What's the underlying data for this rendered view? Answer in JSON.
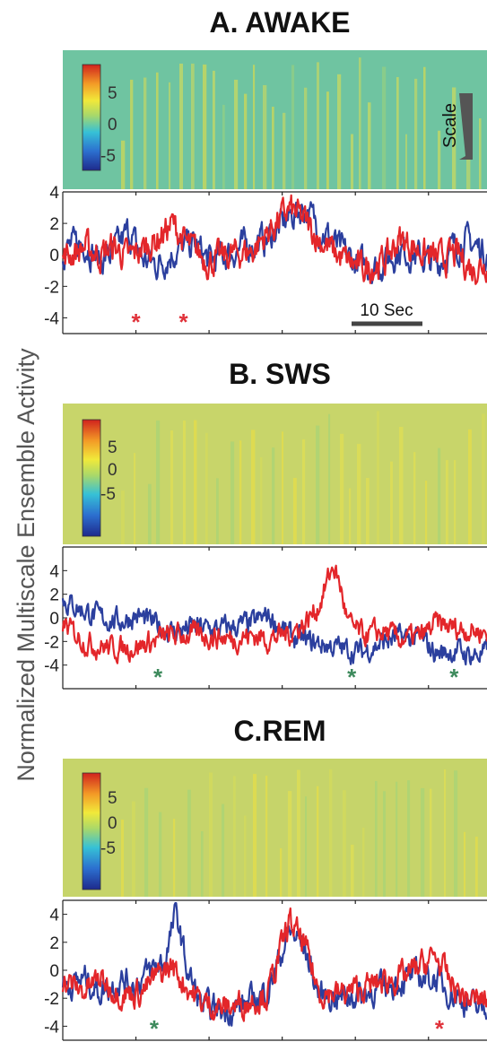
{
  "y_label": "Normalized Multiscale Ensemble Activity",
  "colors": {
    "series_blue": "#2b3f9e",
    "series_red": "#e3262a",
    "star_red": "#e0323a",
    "star_green": "#3d8a5c"
  },
  "chart_data": [
    {
      "type": "line",
      "title": "A. AWAKE",
      "colorbar_ticks": [
        "5",
        "0",
        "-5"
      ],
      "scale_label": "Scale",
      "scale_bar_label": "10 Sec",
      "yticks": [
        "4",
        "2",
        "0",
        "-2",
        "-4"
      ],
      "ylim": [
        -5,
        4
      ],
      "x_duration_sec": 58,
      "series": [
        {
          "color": "blue",
          "anchors": [
            [
              0,
              0.3
            ],
            [
              3,
              0.8
            ],
            [
              5,
              -0.4
            ],
            [
              7,
              0.2
            ],
            [
              9,
              1.5
            ],
            [
              11,
              -0.3
            ],
            [
              13,
              -0.6
            ],
            [
              16,
              0.4
            ],
            [
              18,
              0.7
            ],
            [
              20,
              -0.4
            ],
            [
              23,
              0.1
            ],
            [
              25,
              0.6
            ],
            [
              28,
              1.0
            ],
            [
              31,
              2.4
            ],
            [
              33,
              3.0
            ],
            [
              35,
              1.8
            ],
            [
              38,
              0.3
            ],
            [
              40,
              -0.5
            ],
            [
              43,
              -0.8
            ],
            [
              46,
              0.3
            ],
            [
              48,
              0.0
            ],
            [
              51,
              -0.6
            ],
            [
              53,
              0.3
            ],
            [
              55,
              0.9
            ],
            [
              58,
              0.2
            ]
          ]
        },
        {
          "color": "red",
          "anchors": [
            [
              0,
              -0.2
            ],
            [
              3,
              0.5
            ],
            [
              5,
              0.0
            ],
            [
              7,
              0.5
            ],
            [
              9,
              -0.2
            ],
            [
              11,
              0.4
            ],
            [
              13,
              1.0
            ],
            [
              15,
              2.0
            ],
            [
              17,
              0.6
            ],
            [
              20,
              -0.4
            ],
            [
              23,
              0.0
            ],
            [
              26,
              0.3
            ],
            [
              28,
              1.4
            ],
            [
              31,
              2.9
            ],
            [
              33,
              2.2
            ],
            [
              35,
              1.0
            ],
            [
              38,
              -0.2
            ],
            [
              41,
              -0.9
            ],
            [
              44,
              -0.4
            ],
            [
              46,
              1.0
            ],
            [
              48,
              0.5
            ],
            [
              51,
              -0.3
            ],
            [
              54,
              0.0
            ],
            [
              56,
              -0.9
            ],
            [
              58,
              -0.4
            ]
          ]
        }
      ],
      "markers": [
        {
          "label": "*",
          "color": "red",
          "t": 10
        },
        {
          "label": "*",
          "color": "red",
          "t": 16.5
        }
      ]
    },
    {
      "type": "line",
      "title": "B. SWS",
      "colorbar_ticks": [
        "5",
        "0",
        "-5"
      ],
      "yticks": [
        "4",
        "2",
        "0",
        "-2",
        "-4"
      ],
      "ylim": [
        -6,
        6
      ],
      "x_duration_sec": 58,
      "series": [
        {
          "color": "blue",
          "anchors": [
            [
              0,
              1.5
            ],
            [
              3,
              0.6
            ],
            [
              5,
              0.0
            ],
            [
              8,
              -0.3
            ],
            [
              10,
              0.2
            ],
            [
              12,
              -0.4
            ],
            [
              15,
              -1.2
            ],
            [
              18,
              -0.8
            ],
            [
              21,
              -1.0
            ],
            [
              24,
              -0.7
            ],
            [
              26,
              -0.5
            ],
            [
              28,
              0.2
            ],
            [
              31,
              -1.5
            ],
            [
              33,
              -2.0
            ],
            [
              36,
              -2.3
            ],
            [
              38,
              -2.6
            ],
            [
              41,
              -2.9
            ],
            [
              44,
              -2.0
            ],
            [
              46,
              -1.7
            ],
            [
              49,
              -1.8
            ],
            [
              51,
              -3.0
            ],
            [
              54,
              -2.8
            ],
            [
              56,
              -3.2
            ],
            [
              58,
              -3.0
            ]
          ]
        },
        {
          "color": "red",
          "anchors": [
            [
              0,
              -0.5
            ],
            [
              3,
              -2.0
            ],
            [
              5,
              -2.4
            ],
            [
              8,
              -2.6
            ],
            [
              11,
              -2.3
            ],
            [
              14,
              -1.6
            ],
            [
              17,
              -1.4
            ],
            [
              20,
              -1.5
            ],
            [
              23,
              -1.8
            ],
            [
              26,
              -1.5
            ],
            [
              28,
              -1.8
            ],
            [
              31,
              -1.3
            ],
            [
              33,
              -0.5
            ],
            [
              35,
              1.0
            ],
            [
              37,
              4.5
            ],
            [
              38,
              2.5
            ],
            [
              39,
              -0.5
            ],
            [
              41,
              -1.5
            ],
            [
              44,
              -1.2
            ],
            [
              46,
              -1.8
            ],
            [
              49,
              -1.6
            ],
            [
              51,
              -0.5
            ],
            [
              53,
              -0.8
            ],
            [
              55,
              -1.0
            ],
            [
              58,
              -1.2
            ]
          ]
        }
      ],
      "markers": [
        {
          "label": "*",
          "color": "green",
          "t": 13
        },
        {
          "label": "*",
          "color": "green",
          "t": 39.5
        },
        {
          "label": "*",
          "color": "green",
          "t": 53.5
        }
      ]
    },
    {
      "type": "line",
      "title": "C.REM",
      "colorbar_ticks": [
        "5",
        "0",
        "-5"
      ],
      "yticks": [
        "4",
        "2",
        "0",
        "-2",
        "-4"
      ],
      "ylim": [
        -5,
        5
      ],
      "x_duration_sec": 58,
      "series": [
        {
          "color": "blue",
          "anchors": [
            [
              0,
              -1.2
            ],
            [
              3,
              -0.6
            ],
            [
              5,
              -1.5
            ],
            [
              8,
              -0.7
            ],
            [
              10,
              -1.0
            ],
            [
              12,
              0.0
            ],
            [
              14,
              0.7
            ],
            [
              15.5,
              4.2
            ],
            [
              17,
              0.0
            ],
            [
              19,
              -2.6
            ],
            [
              22,
              -2.9
            ],
            [
              25,
              -2.4
            ],
            [
              28,
              -1.5
            ],
            [
              31,
              2.8
            ],
            [
              33,
              1.7
            ],
            [
              35,
              -1.8
            ],
            [
              38,
              -1.9
            ],
            [
              41,
              -1.7
            ],
            [
              44,
              -1.2
            ],
            [
              46,
              -0.8
            ],
            [
              48,
              -0.4
            ],
            [
              51,
              -0.6
            ],
            [
              53,
              -1.6
            ],
            [
              55,
              -2.2
            ],
            [
              57,
              -2.8
            ],
            [
              58,
              -2.6
            ]
          ]
        },
        {
          "color": "red",
          "anchors": [
            [
              0,
              -0.8
            ],
            [
              3,
              -1.5
            ],
            [
              5,
              -0.6
            ],
            [
              8,
              -1.7
            ],
            [
              11,
              -1.5
            ],
            [
              13,
              -0.4
            ],
            [
              15,
              0.3
            ],
            [
              17,
              -1.2
            ],
            [
              19,
              -2.3
            ],
            [
              22,
              -2.7
            ],
            [
              25,
              -2.3
            ],
            [
              28,
              -1.7
            ],
            [
              31,
              3.5
            ],
            [
              33,
              1.8
            ],
            [
              35,
              -1.5
            ],
            [
              38,
              -1.7
            ],
            [
              41,
              -1.3
            ],
            [
              44,
              -0.8
            ],
            [
              47,
              -0.4
            ],
            [
              49,
              0.3
            ],
            [
              51,
              1.0
            ],
            [
              53,
              -0.9
            ],
            [
              55,
              -2.0
            ],
            [
              57,
              -2.2
            ],
            [
              58,
              -2.0
            ]
          ]
        }
      ],
      "markers": [
        {
          "label": "*",
          "color": "green",
          "t": 12.5
        },
        {
          "label": "*",
          "color": "red",
          "t": 51.5
        }
      ]
    }
  ]
}
